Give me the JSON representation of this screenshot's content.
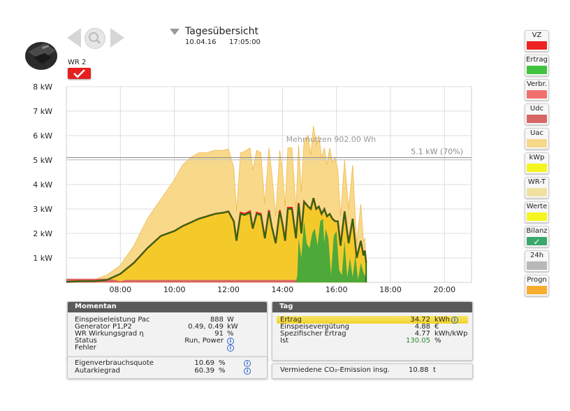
{
  "header": {
    "title": "Tagesübersicht",
    "date": "10.04.16",
    "time": "17:05:00",
    "inverter_label": "WR 2",
    "icons": {
      "device": "inverter-device-icon",
      "prev": "arrow-left-icon",
      "zoom": "magnifier-icon",
      "next": "arrow-right-icon",
      "expand": "triangle-down-icon",
      "check": "checkmark-icon"
    }
  },
  "legend": [
    {
      "label": "VZ",
      "color": "#ee2222",
      "checked": false
    },
    {
      "label": "Ertrag",
      "color": "#3fc43f",
      "checked": false
    },
    {
      "label": "Verbr.",
      "color": "#f07070",
      "checked": false
    },
    {
      "label": "Udc",
      "color": "#d96666",
      "checked": false
    },
    {
      "label": "Uac",
      "color": "#f8d98a",
      "checked": false
    },
    {
      "label": "kWp",
      "color": "#f5f520",
      "checked": false
    },
    {
      "label": "WR-T",
      "color": "#efe2a0",
      "checked": false
    },
    {
      "label": "Werte",
      "color": "#f5f520",
      "checked": false
    },
    {
      "label": "Bilanz",
      "color": "#3aa86a",
      "checked": true
    },
    {
      "label": "24h",
      "color": "#b8b8b8",
      "checked": false
    },
    {
      "label": "Progn",
      "color": "#f7ad2e",
      "checked": false
    }
  ],
  "chart_data": {
    "type": "area",
    "x_ticks": [
      "08:00",
      "10:00",
      "12:00",
      "14:00",
      "16:00",
      "18:00",
      "20:00"
    ],
    "y_ticks": [
      "1 kW",
      "2 kW",
      "3 kW",
      "4 kW",
      "5 kW",
      "6 kW",
      "7 kW",
      "8 kW"
    ],
    "xlim": [
      6.0,
      21.0
    ],
    "ylim": [
      0,
      8
    ],
    "grid": true,
    "limit_line": {
      "value": 5.1,
      "label": "5.1 kW (70%)"
    },
    "annotation": "Mehrnutzen 902.00 Wh",
    "series": [
      {
        "name": "Uac",
        "color": "#f8d98a",
        "x": [
          6.0,
          6.5,
          7.0,
          7.5,
          8.0,
          8.5,
          9.0,
          9.5,
          10.0,
          10.3,
          10.6,
          10.9,
          11.2,
          11.5,
          11.8,
          12.0,
          12.2,
          12.3,
          12.45,
          12.6,
          12.8,
          12.9,
          13.05,
          13.2,
          13.35,
          13.5,
          13.6,
          13.75,
          13.9,
          14.0,
          14.1,
          14.2,
          14.35,
          14.5,
          14.6,
          14.7,
          14.8,
          14.95,
          15.05,
          15.15,
          15.25,
          15.35,
          15.45,
          15.55,
          15.65,
          15.75,
          15.85,
          15.95,
          16.05,
          16.15,
          16.3,
          16.45,
          16.6,
          16.75,
          16.9,
          17.0,
          17.05,
          17.1,
          17.1
        ],
        "y": [
          0.0,
          0.05,
          0.1,
          0.3,
          0.7,
          1.5,
          2.6,
          3.4,
          4.2,
          4.8,
          5.1,
          5.3,
          5.3,
          5.4,
          5.4,
          5.45,
          4.7,
          2.9,
          5.3,
          5.35,
          5.5,
          4.6,
          5.4,
          5.3,
          3.2,
          5.5,
          4.5,
          2.7,
          5.4,
          4.6,
          3.1,
          5.5,
          5.5,
          3.0,
          5.6,
          3.7,
          5.8,
          6.0,
          5.2,
          6.4,
          5.6,
          6.0,
          5.1,
          5.5,
          4.8,
          5.5,
          4.9,
          5.1,
          4.6,
          2.7,
          5.0,
          3.0,
          4.8,
          1.6,
          3.2,
          1.7,
          1.8,
          1.0,
          0.0
        ]
      },
      {
        "name": "Ertrag",
        "color": "#f3c81f",
        "x": [
          6.0,
          6.5,
          7.0,
          7.5,
          8.0,
          8.5,
          9.0,
          9.5,
          10.0,
          10.3,
          10.6,
          10.9,
          11.2,
          11.5,
          11.8,
          12.0,
          12.2,
          12.3,
          12.45,
          12.6,
          12.8,
          12.9,
          13.05,
          13.2,
          13.35,
          13.5,
          13.6,
          13.75,
          13.9,
          14.0,
          14.1,
          14.2,
          14.35,
          14.5,
          14.6,
          14.7,
          14.8,
          14.95,
          15.05,
          15.15,
          15.25,
          15.35,
          15.45,
          15.55,
          15.65,
          15.75,
          15.85,
          15.95,
          16.05,
          16.15,
          16.3,
          16.45,
          16.6,
          16.75,
          16.9,
          17.0,
          17.05,
          17.1,
          17.1
        ],
        "y": [
          0.02,
          0.05,
          0.05,
          0.1,
          0.35,
          0.8,
          1.4,
          1.9,
          2.1,
          2.3,
          2.45,
          2.6,
          2.7,
          2.8,
          2.85,
          2.9,
          2.5,
          1.7,
          2.8,
          2.75,
          2.85,
          2.2,
          2.8,
          2.75,
          1.8,
          2.9,
          2.3,
          1.6,
          2.9,
          2.4,
          1.7,
          3.0,
          3.0,
          1.8,
          3.2,
          2.0,
          3.3,
          3.1,
          3.0,
          3.45,
          3.0,
          3.1,
          2.8,
          3.0,
          2.7,
          2.8,
          2.6,
          2.5,
          2.5,
          1.5,
          2.9,
          1.6,
          2.6,
          1.0,
          1.7,
          1.1,
          1.3,
          0.8,
          0.0
        ]
      },
      {
        "name": "VZ",
        "color": "#ee2222",
        "x": [
          6.0,
          6.5,
          7.0,
          7.5,
          8.0,
          8.5,
          9.0,
          9.5,
          10.0,
          10.3,
          10.6,
          10.9,
          11.2,
          11.5,
          11.8,
          12.0,
          12.2,
          12.3,
          12.45,
          12.6,
          12.8,
          12.9,
          13.05,
          13.2,
          13.35,
          13.5,
          13.6,
          13.75,
          13.9,
          14.0,
          14.1,
          14.2,
          14.35,
          14.5,
          14.6,
          14.7,
          14.8,
          14.95,
          15.05,
          15.15,
          15.25,
          15.35,
          15.45,
          15.55,
          15.65,
          15.75,
          15.85,
          15.95,
          16.05,
          16.15,
          16.3,
          16.45,
          16.6,
          16.75,
          16.9,
          17.0,
          17.05,
          17.1
        ],
        "y": [
          0.02,
          0.05,
          0.05,
          0.1,
          0.35,
          0.8,
          1.4,
          1.9,
          2.1,
          2.3,
          2.45,
          2.6,
          2.7,
          2.8,
          2.85,
          2.9,
          2.5,
          1.7,
          2.85,
          2.8,
          2.9,
          2.2,
          2.85,
          2.8,
          1.8,
          2.95,
          2.3,
          1.6,
          2.95,
          2.4,
          1.7,
          3.05,
          3.05,
          1.8,
          3.25,
          2.0,
          3.3,
          3.1,
          3.0,
          3.45,
          3.0,
          3.1,
          2.8,
          3.0,
          2.7,
          2.8,
          2.6,
          2.5,
          2.5,
          1.5,
          2.9,
          1.6,
          2.6,
          1.0,
          1.7,
          1.1,
          1.3,
          0.8
        ]
      },
      {
        "name": "Verbr.",
        "color": "#d96666",
        "x": [
          6.0,
          6.5,
          7.0,
          7.5,
          7.8,
          8.0,
          8.2,
          8.5,
          9.0,
          10.0,
          11.0,
          12.0,
          13.0,
          14.0,
          14.4,
          14.6,
          15.0,
          15.5,
          16.0,
          16.5,
          17.0,
          17.1,
          17.1,
          6.0
        ],
        "y": [
          0.15,
          0.15,
          0.15,
          0.15,
          0.1,
          0.05,
          0.1,
          0.1,
          0.1,
          0.1,
          0.1,
          0.1,
          0.1,
          0.1,
          0.1,
          0.1,
          0.1,
          0.1,
          0.1,
          0.1,
          0.1,
          0.1,
          0.0,
          0.0
        ]
      },
      {
        "name": "Bilanz",
        "color": "#4ca93a",
        "x": [
          14.5,
          14.55,
          14.6,
          14.7,
          14.8,
          14.9,
          15.0,
          15.1,
          15.2,
          15.3,
          15.4,
          15.5,
          15.55,
          15.6,
          15.7,
          15.8,
          15.9,
          16.0,
          16.1,
          16.2,
          16.3,
          16.4,
          16.5,
          16.6,
          16.7,
          16.8,
          16.9,
          17.0,
          17.1,
          17.1
        ],
        "y": [
          0.0,
          0.3,
          1.8,
          1.0,
          2.5,
          1.6,
          1.4,
          2.0,
          2.2,
          1.5,
          2.5,
          2.6,
          1.6,
          2.2,
          1.8,
          0.3,
          1.9,
          2.1,
          0.5,
          0.3,
          1.7,
          0.2,
          1.0,
          0.2,
          1.1,
          0.1,
          0.8,
          0.4,
          0.2,
          0.0
        ]
      }
    ]
  },
  "momentan": {
    "header": "Momentan",
    "rows": [
      {
        "label": "Einspeiseleistung Pac",
        "value": "888",
        "unit": "W",
        "info": false
      },
      {
        "label": "Generator P1,P2",
        "value": "0.49, 0.49",
        "unit": "kW",
        "info": false
      },
      {
        "label": "WR Wirkungsgrad η",
        "value": "91",
        "unit": "%",
        "info": false
      },
      {
        "label": "Status",
        "value": "Run, Power",
        "unit": "",
        "info": true
      },
      {
        "label": "Fehler",
        "value": "",
        "unit": "",
        "info": true
      }
    ],
    "quota_rows": [
      {
        "label": "Eigenverbrauchsquote",
        "value": "10.69",
        "unit": "%"
      },
      {
        "label": "Autarkiegrad",
        "value": "60.39",
        "unit": "%"
      }
    ]
  },
  "tag": {
    "header": "Tag",
    "rows": [
      {
        "label": "Ertrag",
        "value": "34.72",
        "unit": "kWh",
        "info": true
      },
      {
        "label": "Einspeisevergütung",
        "value": "4.88",
        "unit": "€",
        "info": false
      },
      {
        "label": "Spezifischer Ertrag",
        "value": "4.77",
        "unit": "kWh/kWp",
        "info": false
      },
      {
        "label": "Ist",
        "value": "130.05",
        "unit": "%",
        "info": false
      }
    ],
    "co2": {
      "label": "Vermiedene CO₂-Emission insg.",
      "value": "10.88",
      "unit": "t"
    }
  }
}
